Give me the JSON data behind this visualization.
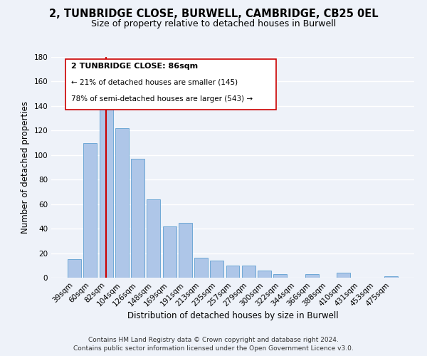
{
  "title": "2, TUNBRIDGE CLOSE, BURWELL, CAMBRIDGE, CB25 0EL",
  "subtitle": "Size of property relative to detached houses in Burwell",
  "xlabel": "Distribution of detached houses by size in Burwell",
  "ylabel": "Number of detached properties",
  "bar_labels": [
    "39sqm",
    "60sqm",
    "82sqm",
    "104sqm",
    "126sqm",
    "148sqm",
    "169sqm",
    "191sqm",
    "213sqm",
    "235sqm",
    "257sqm",
    "279sqm",
    "300sqm",
    "322sqm",
    "344sqm",
    "366sqm",
    "388sqm",
    "410sqm",
    "431sqm",
    "453sqm",
    "475sqm"
  ],
  "bar_values": [
    15,
    110,
    140,
    122,
    97,
    64,
    42,
    45,
    16,
    14,
    10,
    10,
    6,
    3,
    0,
    3,
    0,
    4,
    0,
    0,
    1
  ],
  "bar_color": "#aec6e8",
  "bar_edge_color": "#6fa8d6",
  "highlight_index": 2,
  "highlight_line_color": "#cc0000",
  "ylim": [
    0,
    180
  ],
  "yticks": [
    0,
    20,
    40,
    60,
    80,
    100,
    120,
    140,
    160,
    180
  ],
  "annotation_title": "2 TUNBRIDGE CLOSE: 86sqm",
  "annotation_line1": "← 21% of detached houses are smaller (145)",
  "annotation_line2": "78% of semi-detached houses are larger (543) →",
  "footer_line1": "Contains HM Land Registry data © Crown copyright and database right 2024.",
  "footer_line2": "Contains public sector information licensed under the Open Government Licence v3.0.",
  "background_color": "#eef2f9",
  "grid_color": "#d8e4f0",
  "title_fontsize": 10.5,
  "subtitle_fontsize": 9,
  "axis_label_fontsize": 8.5,
  "tick_fontsize": 7.5,
  "footer_fontsize": 6.5,
  "ann_fontsize_title": 8,
  "ann_fontsize_body": 7.5
}
